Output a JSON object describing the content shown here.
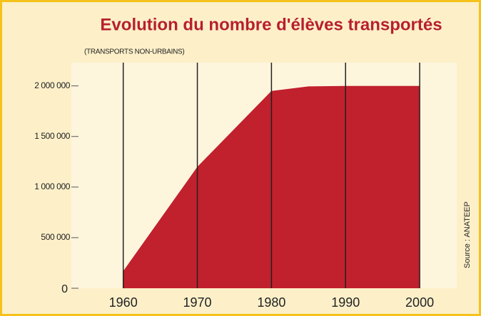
{
  "chart_data": {
    "type": "area",
    "title": "Evolution du nombre d'élèves transportés",
    "subtitle": "(TRANSPORTS NON-URBAINS)",
    "source": "Source : ANATEEP",
    "color": "#c1202d",
    "x": [
      1960,
      1970,
      1980,
      1985,
      1990,
      2000
    ],
    "values": [
      170000,
      1200000,
      1950000,
      1995000,
      2000000,
      2000000
    ],
    "xlim": [
      1953,
      2005
    ],
    "xticks": [
      1960,
      1970,
      1980,
      1990,
      2000
    ],
    "ylim": [
      0,
      2230000
    ],
    "yticks": [
      0,
      {
        "value": 500000,
        "label": "500 000"
      },
      {
        "value": 1000000,
        "label": "1 000 000"
      },
      {
        "value": 1500000,
        "label": "1 500 000"
      },
      {
        "value": 2000000,
        "label": "2 000 000"
      }
    ],
    "grid": true
  }
}
